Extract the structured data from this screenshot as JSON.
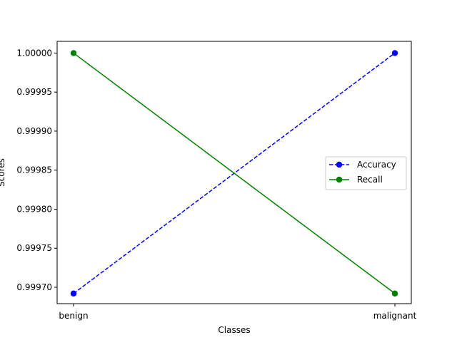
{
  "chart_data": {
    "type": "line",
    "title": "",
    "xlabel": "Classes",
    "ylabel": "Scores",
    "categories": [
      "benign",
      "malignant"
    ],
    "ylim": [
      0.999679,
      1.000015
    ],
    "yticks": [
      0.9997,
      0.99975,
      0.9998,
      0.99985,
      0.9999,
      0.99995,
      1.0
    ],
    "ytick_labels": [
      "0.99970",
      "0.99975",
      "0.99980",
      "0.99985",
      "0.99990",
      "0.99995",
      "1.00000"
    ],
    "grid": false,
    "legend_position": "center-right",
    "series": [
      {
        "name": "Accuracy",
        "values": [
          0.999692,
          1.0
        ],
        "color": "#0000ff",
        "linestyle": "dashed",
        "marker": "circle"
      },
      {
        "name": "Recall",
        "values": [
          1.0,
          0.999692
        ],
        "color": "#008000",
        "linestyle": "solid",
        "marker": "circle"
      }
    ]
  }
}
